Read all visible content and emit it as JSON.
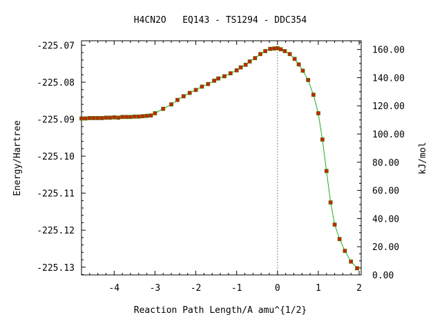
{
  "colors": {
    "background": "#ffffff",
    "axes": "#000000",
    "curve": "#22aa22",
    "marker": "#cc2200",
    "marker_edge": "#556b00",
    "ts_line": "#888888"
  },
  "chart_data": {
    "type": "line",
    "title": "H4CN2O   EQ143 - TS1294 - DDC354",
    "xlabel": "Reaction Path Length/A amu^{1/2}",
    "ylabel": "Energy/Hartree",
    "y2label": "kJ/mol",
    "xlim": [
      -4.8,
      2.05
    ],
    "ylim": [
      -225.1321,
      -225.0688
    ],
    "y2lim": [
      0,
      166.2
    ],
    "xticks": [
      "-4",
      "-3",
      "-2",
      "-1",
      "0",
      "1",
      "2"
    ],
    "xtick_values": [
      -4,
      -3,
      -2,
      -1,
      0,
      1,
      2
    ],
    "yticks": [
      "-225.07",
      "-225.08",
      "-225.09",
      "-225.10",
      "-225.11",
      "-225.12",
      "-225.13"
    ],
    "ytick_values": [
      -225.07,
      -225.08,
      -225.09,
      -225.1,
      -225.11,
      -225.12,
      -225.13
    ],
    "y2ticks": [
      "0.00",
      "20.00",
      "40.00",
      "60.00",
      "80.00",
      "100.00",
      "120.00",
      "140.00",
      "160.00"
    ],
    "y2tick_values": [
      0,
      20,
      40,
      60,
      80,
      100,
      120,
      140,
      160
    ],
    "grid": false,
    "legend": "none",
    "ts_marker_x": 0,
    "series": [
      {
        "x": [
          -4.8,
          -4.7,
          -4.6,
          -4.5,
          -4.4,
          -4.3,
          -4.2,
          -4.1,
          -4.0,
          -3.9,
          -3.8,
          -3.7,
          -3.6,
          -3.5,
          -3.4,
          -3.3,
          -3.2,
          -3.1,
          -3.0,
          -2.8,
          -2.6,
          -2.45,
          -2.3,
          -2.15,
          -2.0,
          -1.85,
          -1.7,
          -1.55,
          -1.45,
          -1.3,
          -1.15,
          -1.0,
          -0.9,
          -0.78,
          -0.68,
          -0.55,
          -0.42,
          -0.3,
          -0.18,
          -0.08,
          0.0,
          0.08,
          0.18,
          0.3,
          0.42,
          0.52,
          0.62,
          0.75,
          0.88,
          1.0,
          1.1,
          1.2,
          1.3,
          1.4,
          1.52,
          1.65,
          1.8,
          1.95
        ],
        "y": [
          -225.0898,
          -225.0898,
          -225.0897,
          -225.0897,
          -225.0897,
          -225.0897,
          -225.0896,
          -225.0896,
          -225.0895,
          -225.0896,
          -225.0894,
          -225.0894,
          -225.0894,
          -225.0893,
          -225.0893,
          -225.0892,
          -225.0891,
          -225.089,
          -225.0884,
          -225.0872,
          -225.086,
          -225.0848,
          -225.0838,
          -225.0829,
          -225.0821,
          -225.0812,
          -225.0805,
          -225.0796,
          -225.079,
          -225.0784,
          -225.0776,
          -225.0768,
          -225.076,
          -225.0753,
          -225.0744,
          -225.0735,
          -225.0724,
          -225.0716,
          -225.071,
          -225.0709,
          -225.0708,
          -225.0711,
          -225.0716,
          -225.0724,
          -225.0737,
          -225.0752,
          -225.0769,
          -225.0794,
          -225.0834,
          -225.0884,
          -225.0955,
          -225.104,
          -225.1125,
          -225.1185,
          -225.1224,
          -225.1256,
          -225.1285,
          -225.1303
        ]
      }
    ]
  }
}
